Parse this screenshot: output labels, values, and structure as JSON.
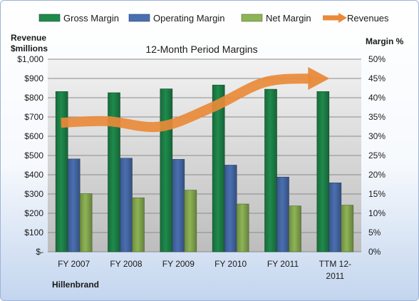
{
  "chart_data": {
    "type": "bar",
    "title": "12-Month Period Margins",
    "left_axis_title_line1": "Revenue",
    "left_axis_title_line2": "$millions",
    "right_axis_title": "Margin %",
    "company": "Hillenbrand",
    "categories": [
      "FY 2007",
      "FY 2008",
      "FY 2009",
      "FY 2010",
      "FY 2011",
      "TTM 12-2011"
    ],
    "category_labels": [
      [
        "FY 2007"
      ],
      [
        "FY 2008"
      ],
      [
        "FY 2009"
      ],
      [
        "FY 2010"
      ],
      [
        "FY 2011"
      ],
      [
        "TTM 12-",
        "2011"
      ]
    ],
    "left_ticks": [
      "$-",
      "$100",
      "$200",
      "$300",
      "$400",
      "$500",
      "$600",
      "$700",
      "$800",
      "$900",
      "$1,000"
    ],
    "right_ticks": [
      "0%",
      "5%",
      "10%",
      "15%",
      "20%",
      "25%",
      "30%",
      "35%",
      "40%",
      "45%",
      "50%"
    ],
    "ylim_left": [
      0,
      1000
    ],
    "ylim_right": [
      0,
      50
    ],
    "grid": true,
    "legend_position": "top",
    "series": [
      {
        "name": "Gross Margin",
        "axis": "right",
        "color": "#1f8a4c",
        "values": [
          41.6,
          41.3,
          42.3,
          43.3,
          42.2,
          41.6
        ]
      },
      {
        "name": "Operating Margin",
        "axis": "right",
        "color": "#4a6fb1",
        "values": [
          24.1,
          24.3,
          24.0,
          22.5,
          19.4,
          17.9
        ]
      },
      {
        "name": "Net Margin",
        "axis": "right",
        "color": "#8db455",
        "values": [
          15.1,
          14.0,
          16.0,
          12.4,
          11.9,
          12.1
        ]
      },
      {
        "name": "Revenues",
        "axis": "left",
        "color": "#e98a3a",
        "values": [
          670,
          678,
          650,
          750,
          880,
          900
        ]
      }
    ]
  }
}
